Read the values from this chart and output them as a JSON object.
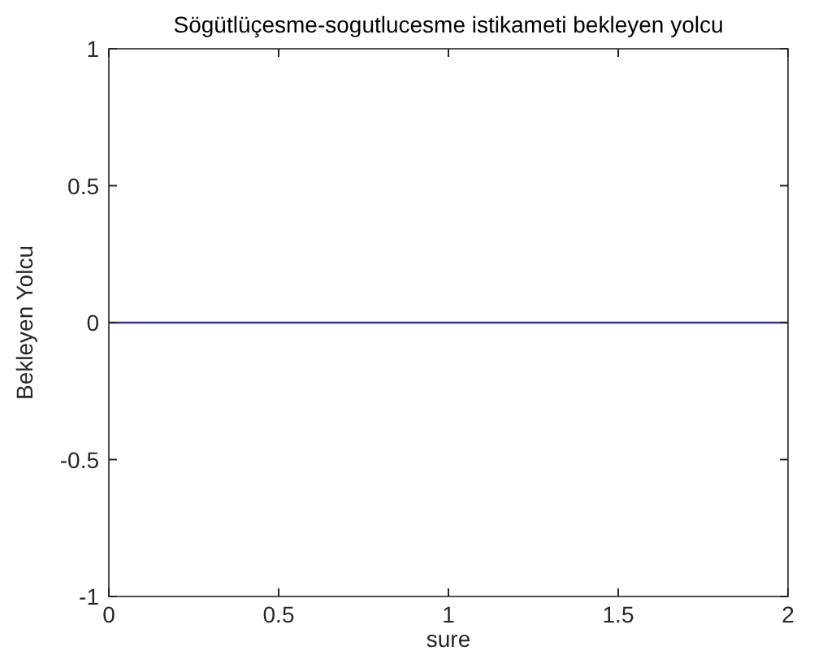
{
  "chart_data": {
    "type": "line",
    "title": "Sögütlüçesme-sogutlucesme istikameti bekleyen yolcu",
    "xlabel": "sure",
    "ylabel": "Bekleyen Yolcu",
    "series": [
      {
        "color": "#2b3a8c",
        "x": [
          0,
          2
        ],
        "values": [
          0,
          0
        ]
      }
    ],
    "xlim": [
      0,
      2
    ],
    "xticks": [
      0,
      0.5,
      1,
      1.5,
      2
    ],
    "ylim": [
      -1,
      1
    ],
    "yticks": [
      -1,
      -0.5,
      0,
      0.5,
      1
    ],
    "marker": "none",
    "line_style": "solid"
  }
}
